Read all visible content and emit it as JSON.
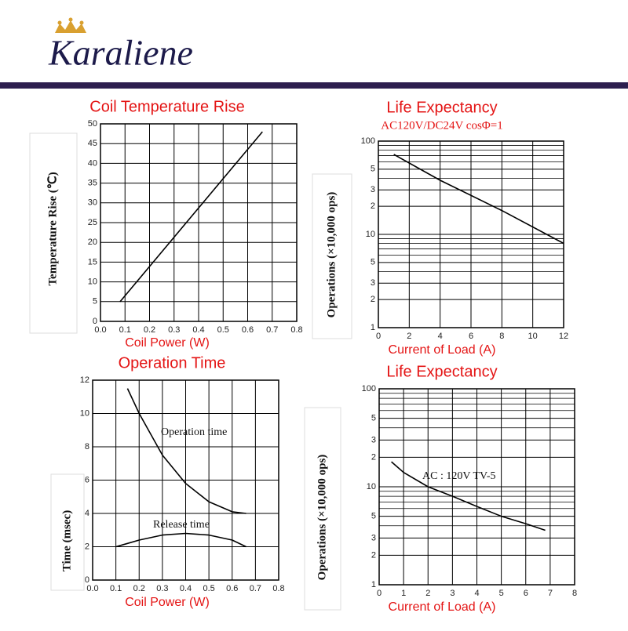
{
  "brand": "Karaliene",
  "chart_data": [
    {
      "type": "line",
      "title": "Coil Temperature Rise",
      "x_label": "Coil Power (W)",
      "y_label": "Temperature Rise (℃)",
      "x": [
        0.08,
        0.66
      ],
      "series": [
        {
          "name": null,
          "color": "#000000",
          "values": [
            5,
            48
          ]
        }
      ],
      "xlim": [
        0,
        0.8
      ],
      "xticks": [
        {
          "value": 0,
          "label": "0.0"
        },
        0.1,
        0.2,
        0.3,
        0.4,
        0.5,
        0.6,
        0.7,
        0.8
      ],
      "ylim": [
        0,
        50
      ],
      "yticks": [
        0,
        5,
        10,
        15,
        20,
        25,
        30,
        35,
        40,
        45,
        50
      ],
      "grid": true
    },
    {
      "type": "line",
      "title": "Life Expectancy",
      "subtitle": "AC120V/DC24V cosΦ=1",
      "x_label": "Current of Load (A)",
      "y_label": "Operations (×10,000 ops)",
      "x": [
        1,
        4,
        8,
        12
      ],
      "series": [
        {
          "name": null,
          "color": "#000000",
          "values": [
            72,
            38,
            18,
            8
          ]
        }
      ],
      "xlim": [
        0,
        12
      ],
      "xticks": [
        0,
        2,
        4,
        6,
        8,
        10,
        12
      ],
      "ylim": [
        1,
        100
      ],
      "log_y": true,
      "yticks": [
        1,
        2,
        3,
        5,
        10,
        {
          "value": 20,
          "label": "2"
        },
        {
          "value": 30,
          "label": "3"
        },
        {
          "value": 50,
          "label": "5"
        },
        100
      ],
      "yminor": [
        4,
        6,
        7,
        8,
        9,
        40,
        60,
        70,
        80,
        90
      ],
      "grid": true
    },
    {
      "type": "line",
      "title": "Operation Time",
      "x_label": "Coil Power (W)",
      "y_label": "Time (msec)",
      "x": [
        0.1,
        0.15,
        0.2,
        0.3,
        0.4,
        0.5,
        0.6,
        0.66
      ],
      "series": [
        {
          "name": "Operation time",
          "color": "#000000",
          "values": [
            null,
            11.5,
            10,
            7.5,
            5.8,
            4.7,
            4.1,
            4.0
          ]
        },
        {
          "name": "Release time",
          "color": "#000000",
          "values": [
            2.0,
            2.2,
            2.4,
            2.7,
            2.8,
            2.7,
            2.4,
            2.0
          ]
        }
      ],
      "xlim": [
        0,
        0.8
      ],
      "xticks": [
        {
          "value": 0,
          "label": "0.0"
        },
        0.1,
        0.2,
        0.3,
        0.4,
        0.5,
        0.6,
        0.7,
        0.8
      ],
      "ylim": [
        0,
        12
      ],
      "yticks": [
        0,
        2,
        4,
        6,
        8,
        10,
        12
      ],
      "grid": true
    },
    {
      "type": "line",
      "title": "Life Expectancy",
      "x_label": "Current of Load (A)",
      "y_label": "Operations (×10,000 ops)",
      "x": [
        0.5,
        1,
        2,
        3,
        4,
        5,
        6,
        6.8
      ],
      "series": [
        {
          "name": "AC : 120V TV-5",
          "color": "#000000",
          "values": [
            18,
            14,
            10,
            8,
            6.3,
            5,
            4.2,
            3.6
          ]
        }
      ],
      "xlim": [
        0,
        8
      ],
      "xticks": [
        0,
        1,
        2,
        3,
        4,
        5,
        6,
        7,
        8
      ],
      "ylim": [
        1,
        100
      ],
      "log_y": true,
      "yticks": [
        1,
        2,
        3,
        5,
        10,
        {
          "value": 20,
          "label": "2"
        },
        {
          "value": 30,
          "label": "3"
        },
        {
          "value": 50,
          "label": "5"
        },
        100
      ],
      "yminor": [
        4,
        6,
        7,
        8,
        9,
        40,
        60,
        70,
        80,
        90
      ],
      "grid": true
    }
  ]
}
